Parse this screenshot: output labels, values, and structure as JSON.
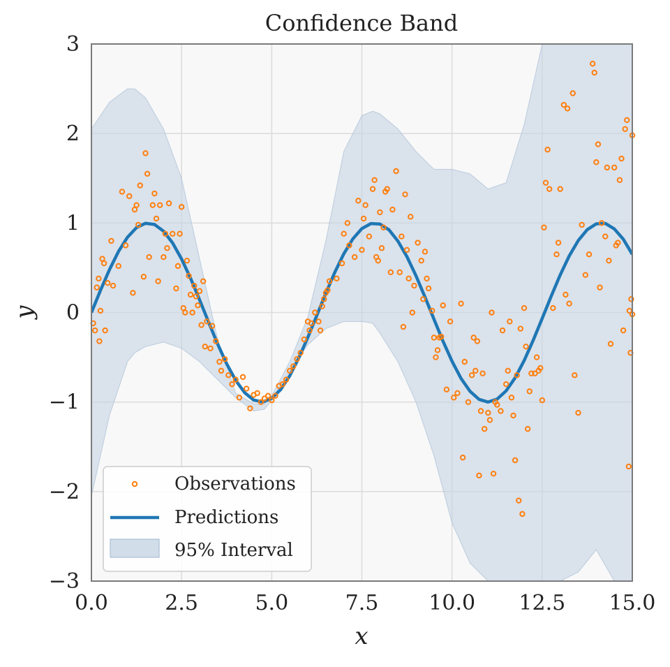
{
  "chart_data": {
    "type": "line",
    "title": "Confidence Band",
    "xlabel": "x",
    "ylabel": "y",
    "xlim": [
      0,
      15
    ],
    "ylim": [
      -3,
      3
    ],
    "grid": true,
    "legend_position": "bottom-left",
    "x_ticks": [
      {
        "value": 0,
        "label": "0.0"
      },
      {
        "value": 2.5,
        "label": "2.5"
      },
      {
        "value": 5,
        "label": "5.0"
      },
      {
        "value": 7.5,
        "label": "7.5"
      },
      {
        "value": 10,
        "label": "10.0"
      },
      {
        "value": 12.5,
        "label": "12.5"
      },
      {
        "value": 15,
        "label": "15.0"
      }
    ],
    "y_ticks": [
      {
        "value": -3,
        "label": "−3"
      },
      {
        "value": -2,
        "label": "−2"
      },
      {
        "value": -1,
        "label": "−1"
      },
      {
        "value": 0,
        "label": "0"
      },
      {
        "value": 1,
        "label": "1"
      },
      {
        "value": 2,
        "label": "2"
      },
      {
        "value": 3,
        "label": "3"
      }
    ],
    "legend": [
      {
        "key": "observations",
        "label": "Observations"
      },
      {
        "key": "predictions",
        "label": "Predictions"
      },
      {
        "key": "interval",
        "label": "95% Interval"
      }
    ],
    "colors": {
      "observations": "#ff7f0e",
      "predictions": "#1f77b4",
      "band_fill": "#c6d4e4",
      "plot_bg": "#f8f8f8",
      "grid": "#dddddd",
      "frame": "#7a7a7a"
    },
    "series": [
      {
        "name": "Predictions",
        "kind": "line",
        "x": [
          0,
          0.25,
          0.5,
          0.75,
          1,
          1.25,
          1.5,
          1.75,
          2,
          2.25,
          2.5,
          2.75,
          3,
          3.25,
          3.5,
          3.75,
          4,
          4.25,
          4.5,
          4.75,
          5,
          5.25,
          5.5,
          5.75,
          6,
          6.25,
          6.5,
          6.75,
          7,
          7.25,
          7.5,
          7.75,
          8,
          8.25,
          8.5,
          8.75,
          9,
          9.25,
          9.5,
          9.75,
          10,
          10.25,
          10.5,
          10.75,
          11,
          11.25,
          11.5,
          11.75,
          12,
          12.25,
          12.5,
          12.75,
          13,
          13.25,
          13.5,
          13.75,
          14,
          14.25,
          14.5,
          14.75,
          15
        ],
        "y": [
          0,
          0.247,
          0.479,
          0.682,
          0.841,
          0.949,
          0.997,
          0.984,
          0.909,
          0.778,
          0.598,
          0.382,
          0.141,
          -0.108,
          -0.351,
          -0.572,
          -0.757,
          -0.895,
          -0.978,
          -0.999,
          -0.959,
          -0.859,
          -0.706,
          -0.508,
          -0.279,
          -0.033,
          0.215,
          0.45,
          0.657,
          0.823,
          0.938,
          0.994,
          0.989,
          0.925,
          0.798,
          0.624,
          0.412,
          0.174,
          -0.075,
          -0.32,
          -0.544,
          -0.736,
          -0.88,
          -0.97,
          -1,
          -0.967,
          -0.875,
          -0.729,
          -0.537,
          -0.311,
          -0.066,
          0.182,
          0.42,
          0.632,
          0.804,
          0.926,
          0.991,
          0.996,
          0.935,
          0.819,
          0.65
        ]
      },
      {
        "name": "95% Interval",
        "kind": "band",
        "x": [
          0,
          0.5,
          1,
          1.2,
          1.5,
          2,
          2.5,
          3,
          3.5,
          4,
          4.5,
          4.8,
          5,
          5.5,
          6,
          6.5,
          7,
          7.5,
          7.8,
          8,
          8.5,
          9,
          9.5,
          10,
          10.5,
          11,
          11.5,
          12,
          12.5,
          13,
          13.5,
          14,
          14.5,
          15
        ],
        "lower": [
          -2.05,
          -1.15,
          -0.55,
          -0.45,
          -0.38,
          -0.33,
          -0.4,
          -0.55,
          -0.75,
          -0.95,
          -1.1,
          -1.08,
          -0.98,
          -0.65,
          -0.36,
          -0.18,
          -0.1,
          -0.1,
          -0.12,
          -0.23,
          -0.55,
          -1,
          -1.6,
          -2.35,
          -2.8,
          -3,
          -3,
          -3,
          -3,
          -3,
          -2.9,
          -2.65,
          -3,
          -3
        ],
        "upper": [
          2.05,
          2.35,
          2.5,
          2.5,
          2.4,
          2.05,
          1.5,
          0.6,
          -0.3,
          -0.9,
          -1.02,
          -1.02,
          -0.93,
          -0.55,
          -0.05,
          0.8,
          1.8,
          2.2,
          2.25,
          2.22,
          2.05,
          1.8,
          1.6,
          1.6,
          1.55,
          1.38,
          1.45,
          2.1,
          3,
          3,
          3,
          3,
          3,
          3
        ]
      },
      {
        "name": "Observations",
        "kind": "scatter",
        "points": [
          [
            0.05,
            -0.12
          ],
          [
            0.1,
            -0.2
          ],
          [
            0.15,
            0.28
          ],
          [
            0.2,
            0.38
          ],
          [
            0.22,
            -0.32
          ],
          [
            0.25,
            0.02
          ],
          [
            0.3,
            0.6
          ],
          [
            0.35,
            0.55
          ],
          [
            0.38,
            -0.2
          ],
          [
            0.45,
            0.33
          ],
          [
            0.55,
            0.8
          ],
          [
            0.6,
            0.3
          ],
          [
            0.75,
            0.52
          ],
          [
            0.85,
            1.35
          ],
          [
            0.95,
            0.75
          ],
          [
            1.05,
            1.3
          ],
          [
            1.15,
            0.22
          ],
          [
            1.2,
            1.15
          ],
          [
            1.25,
            1.2
          ],
          [
            1.3,
            0.98
          ],
          [
            1.35,
            1.42
          ],
          [
            1.45,
            0.4
          ],
          [
            1.5,
            1.78
          ],
          [
            1.55,
            1.55
          ],
          [
            1.6,
            0.62
          ],
          [
            1.7,
            1.2
          ],
          [
            1.75,
            1.33
          ],
          [
            1.8,
            1.05
          ],
          [
            1.85,
            0.35
          ],
          [
            1.9,
            1.2
          ],
          [
            2.0,
            0.62
          ],
          [
            2.05,
            0.88
          ],
          [
            2.1,
            0.72
          ],
          [
            2.15,
            1.22
          ],
          [
            2.25,
            0.88
          ],
          [
            2.35,
            0.27
          ],
          [
            2.4,
            0.52
          ],
          [
            2.45,
            0.88
          ],
          [
            2.5,
            1.18
          ],
          [
            2.55,
            0.05
          ],
          [
            2.6,
            0.0
          ],
          [
            2.65,
            0.58
          ],
          [
            2.7,
            0.41
          ],
          [
            2.75,
            0.2
          ],
          [
            2.8,
            0.0
          ],
          [
            2.85,
            0.3
          ],
          [
            2.9,
            0.18
          ],
          [
            2.95,
            0.08
          ],
          [
            3.0,
            0.24
          ],
          [
            3.05,
            -0.14
          ],
          [
            3.1,
            0.35
          ],
          [
            3.15,
            -0.38
          ],
          [
            3.2,
            -0.1
          ],
          [
            3.3,
            -0.4
          ],
          [
            3.35,
            -0.15
          ],
          [
            3.45,
            -0.32
          ],
          [
            3.55,
            -0.55
          ],
          [
            3.6,
            -0.65
          ],
          [
            3.7,
            -0.52
          ],
          [
            3.8,
            -0.7
          ],
          [
            3.9,
            -0.8
          ],
          [
            4.0,
            -0.75
          ],
          [
            4.1,
            -0.95
          ],
          [
            4.2,
            -0.72
          ],
          [
            4.3,
            -0.85
          ],
          [
            4.4,
            -1.07
          ],
          [
            4.5,
            -0.92
          ],
          [
            4.6,
            -0.9
          ],
          [
            4.7,
            -1.0
          ],
          [
            4.8,
            -0.96
          ],
          [
            4.9,
            -0.93
          ],
          [
            5.0,
            -0.98
          ],
          [
            5.1,
            -0.93
          ],
          [
            5.2,
            -0.82
          ],
          [
            5.3,
            -0.8
          ],
          [
            5.4,
            -0.75
          ],
          [
            5.5,
            -0.65
          ],
          [
            5.6,
            -0.6
          ],
          [
            5.7,
            -0.52
          ],
          [
            5.8,
            -0.45
          ],
          [
            5.9,
            -0.3
          ],
          [
            6.0,
            -0.1
          ],
          [
            6.05,
            -0.2
          ],
          [
            6.1,
            -0.12
          ],
          [
            6.2,
            0.0
          ],
          [
            6.3,
            -0.1
          ],
          [
            6.35,
            -0.2
          ],
          [
            6.4,
            0.07
          ],
          [
            6.45,
            0.15
          ],
          [
            6.5,
            0.22
          ],
          [
            6.55,
            0.25
          ],
          [
            6.6,
            0.35
          ],
          [
            6.8,
            0.38
          ],
          [
            6.95,
            0.55
          ],
          [
            7.0,
            0.88
          ],
          [
            7.1,
            1.0
          ],
          [
            7.15,
            0.75
          ],
          [
            7.3,
            0.62
          ],
          [
            7.4,
            1.25
          ],
          [
            7.5,
            0.7
          ],
          [
            7.55,
            1.05
          ],
          [
            7.6,
            1.2
          ],
          [
            7.7,
            0.85
          ],
          [
            7.8,
            1.38
          ],
          [
            7.85,
            1.48
          ],
          [
            7.9,
            0.62
          ],
          [
            7.95,
            0.58
          ],
          [
            8.0,
            1.12
          ],
          [
            8.05,
            0.72
          ],
          [
            8.1,
            0.95
          ],
          [
            8.15,
            1.35
          ],
          [
            8.2,
            1.38
          ],
          [
            8.3,
            0.45
          ],
          [
            8.35,
            1.15
          ],
          [
            8.45,
            1.58
          ],
          [
            8.55,
            0.45
          ],
          [
            8.6,
            0.85
          ],
          [
            8.65,
            -0.16
          ],
          [
            8.7,
            1.32
          ],
          [
            8.75,
            0.7
          ],
          [
            8.8,
            0.38
          ],
          [
            8.85,
            1.07
          ],
          [
            8.9,
            0.0
          ],
          [
            8.95,
            0.3
          ],
          [
            9.05,
            0.78
          ],
          [
            9.15,
            0.58
          ],
          [
            9.2,
            0.15
          ],
          [
            9.25,
            0.68
          ],
          [
            9.3,
            0.38
          ],
          [
            9.35,
            0.27
          ],
          [
            9.45,
            0.02
          ],
          [
            9.5,
            -0.28
          ],
          [
            9.55,
            -0.5
          ],
          [
            9.6,
            -0.42
          ],
          [
            9.65,
            -0.28
          ],
          [
            9.7,
            -0.27
          ],
          [
            9.75,
            0.08
          ],
          [
            9.85,
            -0.86
          ],
          [
            9.95,
            -0.1
          ],
          [
            10.05,
            -0.95
          ],
          [
            10.15,
            -0.9
          ],
          [
            10.25,
            0.1
          ],
          [
            10.3,
            -1.62
          ],
          [
            10.35,
            -0.55
          ],
          [
            10.45,
            -1.0
          ],
          [
            10.55,
            -0.7
          ],
          [
            10.6,
            -0.28
          ],
          [
            10.65,
            -0.65
          ],
          [
            10.7,
            -0.32
          ],
          [
            10.75,
            -1.82
          ],
          [
            10.8,
            -1.1
          ],
          [
            10.85,
            -0.68
          ],
          [
            10.9,
            -1.3
          ],
          [
            11.0,
            -1.12
          ],
          [
            11.05,
            -1.2
          ],
          [
            11.1,
            0.0
          ],
          [
            11.15,
            -1.8
          ],
          [
            11.2,
            -1.0
          ],
          [
            11.25,
            -1.03
          ],
          [
            11.35,
            -1.1
          ],
          [
            11.4,
            -0.2
          ],
          [
            11.5,
            -0.8
          ],
          [
            11.55,
            -0.65
          ],
          [
            11.6,
            -0.1
          ],
          [
            11.65,
            -0.95
          ],
          [
            11.7,
            -1.15
          ],
          [
            11.75,
            -1.65
          ],
          [
            11.8,
            -0.7
          ],
          [
            11.85,
            -2.1
          ],
          [
            11.9,
            -0.18
          ],
          [
            11.95,
            -2.25
          ],
          [
            12.0,
            0.05
          ],
          [
            12.05,
            -0.38
          ],
          [
            12.1,
            -1.3
          ],
          [
            12.15,
            -0.88
          ],
          [
            12.2,
            -0.68
          ],
          [
            12.3,
            -0.68
          ],
          [
            12.35,
            -0.5
          ],
          [
            12.4,
            -0.65
          ],
          [
            12.45,
            -0.62
          ],
          [
            12.5,
            -0.98
          ],
          [
            12.55,
            0.95
          ],
          [
            12.6,
            1.45
          ],
          [
            12.65,
            1.82
          ],
          [
            12.7,
            1.38
          ],
          [
            12.8,
            0.05
          ],
          [
            12.9,
            0.65
          ],
          [
            12.95,
            0.78
          ],
          [
            13.0,
            1.38
          ],
          [
            13.1,
            2.32
          ],
          [
            13.15,
            0.2
          ],
          [
            13.2,
            2.28
          ],
          [
            13.25,
            0.1
          ],
          [
            13.35,
            2.45
          ],
          [
            13.4,
            -0.7
          ],
          [
            13.5,
            -1.12
          ],
          [
            13.6,
            0.98
          ],
          [
            13.7,
            0.42
          ],
          [
            13.8,
            0.65
          ],
          [
            13.9,
            2.78
          ],
          [
            13.95,
            2.68
          ],
          [
            14.0,
            1.68
          ],
          [
            14.05,
            1.88
          ],
          [
            14.1,
            0.28
          ],
          [
            14.15,
            1.0
          ],
          [
            14.25,
            0.85
          ],
          [
            14.3,
            1.62
          ],
          [
            14.35,
            0.58
          ],
          [
            14.4,
            -0.35
          ],
          [
            14.5,
            1.62
          ],
          [
            14.55,
            0.75
          ],
          [
            14.6,
            0.78
          ],
          [
            14.65,
            1.48
          ],
          [
            14.7,
            1.72
          ],
          [
            14.75,
            -0.2
          ],
          [
            14.8,
            2.05
          ],
          [
            14.85,
            2.15
          ],
          [
            14.9,
            -1.72
          ],
          [
            14.92,
            0.02
          ],
          [
            14.95,
            -0.45
          ],
          [
            14.97,
            0.15
          ],
          [
            15.0,
            -0.02
          ],
          [
            15.0,
            1.98
          ]
        ]
      }
    ]
  }
}
